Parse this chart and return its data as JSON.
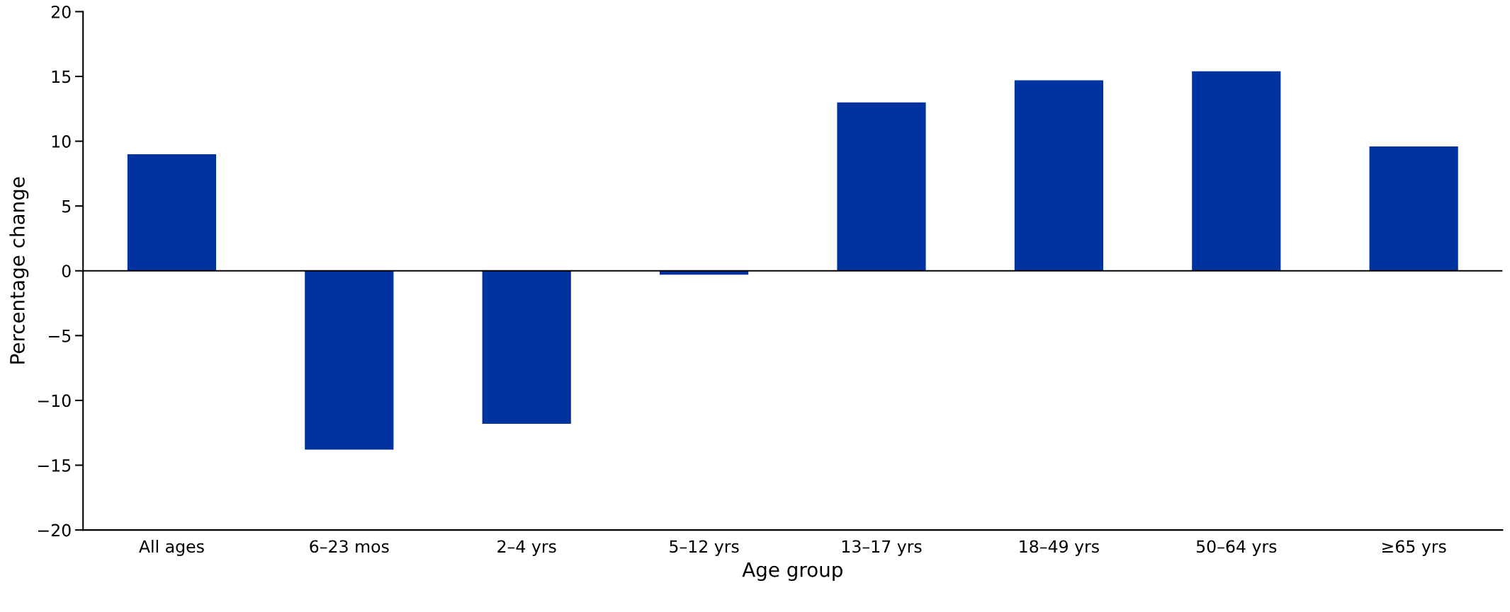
{
  "chart_data": {
    "type": "bar",
    "xlabel": "Age group",
    "ylabel": "Percentage change",
    "categories": [
      "All ages",
      "6–23 mos",
      "2–4 yrs",
      "5–12 yrs",
      "13–17 yrs",
      "18–49 yrs",
      "50–64 yrs",
      "≥65 yrs"
    ],
    "values": [
      9.0,
      -13.8,
      -11.8,
      -0.3,
      13.0,
      14.7,
      15.4,
      9.6
    ],
    "color": "#0033a0",
    "ylim": [
      -20,
      20
    ],
    "yticks": [
      {
        "value": -20,
        "label": "−20"
      },
      {
        "value": -15,
        "label": "−15"
      },
      {
        "value": -10,
        "label": "−10"
      },
      {
        "value": -5,
        "label": "−5"
      },
      0,
      5,
      10,
      15,
      20
    ],
    "ref_lines": [
      {
        "axis": "y",
        "value": 0,
        "color": "#000000"
      }
    ],
    "grid": false
  }
}
